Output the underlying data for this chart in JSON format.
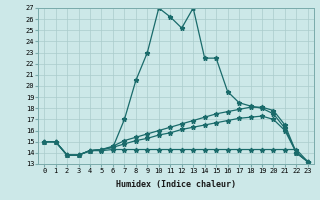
{
  "xlabel": "Humidex (Indice chaleur)",
  "ylabel": "",
  "xlim": [
    -0.5,
    23.5
  ],
  "ylim": [
    13,
    27
  ],
  "xticks": [
    0,
    1,
    2,
    3,
    4,
    5,
    6,
    7,
    8,
    9,
    10,
    11,
    12,
    13,
    14,
    15,
    16,
    17,
    18,
    19,
    20,
    21,
    22,
    23
  ],
  "yticks": [
    13,
    14,
    15,
    16,
    17,
    18,
    19,
    20,
    21,
    22,
    23,
    24,
    25,
    26,
    27
  ],
  "bg_color": "#cce8e8",
  "line_color": "#1a6b6b",
  "grid_color": "#aacccc",
  "line1_x": [
    0,
    1,
    2,
    3,
    4,
    5,
    6,
    7,
    8,
    9,
    10,
    11,
    12,
    13,
    14,
    15,
    16,
    17,
    18,
    19,
    20,
    21,
    22,
    23
  ],
  "line1_y": [
    15.0,
    15.0,
    13.8,
    13.8,
    14.2,
    14.3,
    14.5,
    17.0,
    20.5,
    23.0,
    27.0,
    26.2,
    25.2,
    27.0,
    22.5,
    22.5,
    19.5,
    18.5,
    18.2,
    18.0,
    17.5,
    16.2,
    14.0,
    13.2
  ],
  "line2_x": [
    0,
    1,
    2,
    3,
    4,
    5,
    6,
    7,
    8,
    9,
    10,
    11,
    12,
    13,
    14,
    15,
    16,
    17,
    18,
    19,
    20,
    21,
    22,
    23
  ],
  "line2_y": [
    15.0,
    15.0,
    13.8,
    13.8,
    14.2,
    14.3,
    14.6,
    15.1,
    15.4,
    15.7,
    16.0,
    16.3,
    16.6,
    16.9,
    17.2,
    17.5,
    17.7,
    17.9,
    18.1,
    18.1,
    17.8,
    16.5,
    14.0,
    13.2
  ],
  "line3_x": [
    0,
    1,
    2,
    3,
    4,
    5,
    6,
    7,
    8,
    9,
    10,
    11,
    12,
    13,
    14,
    15,
    16,
    17,
    18,
    19,
    20,
    21,
    22,
    23
  ],
  "line3_y": [
    15.0,
    15.0,
    13.8,
    13.8,
    14.2,
    14.3,
    14.5,
    14.8,
    15.1,
    15.3,
    15.6,
    15.8,
    16.1,
    16.3,
    16.5,
    16.7,
    16.9,
    17.1,
    17.2,
    17.3,
    17.0,
    16.0,
    14.0,
    13.2
  ],
  "line4_x": [
    0,
    1,
    2,
    3,
    4,
    5,
    6,
    7,
    8,
    9,
    10,
    11,
    12,
    13,
    14,
    15,
    16,
    17,
    18,
    19,
    20,
    21,
    22,
    23
  ],
  "line4_y": [
    15.0,
    15.0,
    13.8,
    13.8,
    14.2,
    14.2,
    14.3,
    14.3,
    14.3,
    14.3,
    14.3,
    14.3,
    14.3,
    14.3,
    14.3,
    14.3,
    14.3,
    14.3,
    14.3,
    14.3,
    14.3,
    14.3,
    14.3,
    13.2
  ]
}
